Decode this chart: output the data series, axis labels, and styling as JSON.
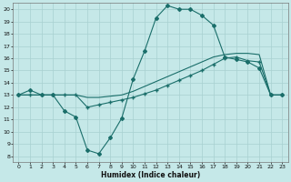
{
  "xlabel": "Humidex (Indice chaleur)",
  "background_color": "#c5e8e8",
  "grid_color": "#a8d0d0",
  "line_color": "#1a6e6a",
  "xlim": [
    -0.5,
    23.5
  ],
  "ylim": [
    7.5,
    20.5
  ],
  "xticks": [
    0,
    1,
    2,
    3,
    4,
    5,
    6,
    7,
    8,
    9,
    10,
    11,
    12,
    13,
    14,
    15,
    16,
    17,
    18,
    19,
    20,
    21,
    22,
    23
  ],
  "yticks": [
    8,
    9,
    10,
    11,
    12,
    13,
    14,
    15,
    16,
    17,
    18,
    19,
    20
  ],
  "line1_x": [
    0,
    1,
    2,
    3,
    4,
    5,
    6,
    7,
    8,
    9,
    10,
    11,
    12,
    13,
    14,
    15,
    16,
    17,
    18,
    19,
    20,
    21,
    22,
    23
  ],
  "line1_y": [
    13.0,
    13.4,
    13.0,
    13.0,
    11.7,
    11.2,
    8.5,
    8.2,
    9.5,
    11.1,
    14.3,
    16.6,
    19.3,
    20.3,
    20.0,
    20.0,
    19.5,
    18.7,
    16.1,
    15.9,
    15.7,
    15.2,
    13.0,
    13.0
  ],
  "line2_x": [
    0,
    1,
    2,
    3,
    4,
    5,
    6,
    7,
    8,
    9,
    10,
    11,
    12,
    13,
    14,
    15,
    16,
    17,
    18,
    19,
    20,
    21,
    22,
    23
  ],
  "line2_y": [
    13.0,
    13.0,
    13.0,
    13.0,
    13.0,
    13.0,
    12.0,
    12.2,
    12.4,
    12.6,
    12.8,
    13.1,
    13.4,
    13.8,
    14.2,
    14.6,
    15.0,
    15.5,
    16.0,
    16.1,
    15.8,
    15.7,
    13.0,
    13.0
  ],
  "line3_x": [
    0,
    1,
    2,
    3,
    4,
    5,
    6,
    7,
    8,
    9,
    10,
    11,
    12,
    13,
    14,
    15,
    16,
    17,
    18,
    19,
    20,
    21,
    22,
    23
  ],
  "line3_y": [
    13.0,
    13.0,
    13.0,
    13.0,
    13.0,
    13.0,
    12.8,
    12.8,
    12.9,
    13.0,
    13.3,
    13.7,
    14.1,
    14.5,
    14.9,
    15.3,
    15.7,
    16.1,
    16.3,
    16.4,
    16.4,
    16.3,
    13.0,
    13.0
  ]
}
